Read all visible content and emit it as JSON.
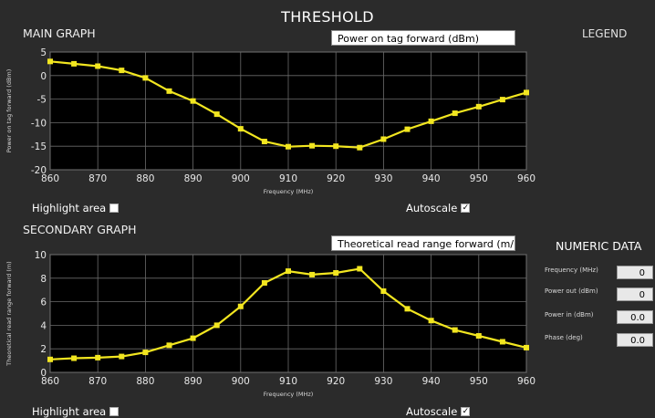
{
  "header": {
    "title": "THRESHOLD"
  },
  "main_graph": {
    "section_title": "MAIN GRAPH",
    "selector_value": "Power on tag forward (dBm)",
    "highlight_label": "Highlight area",
    "highlight_checked": false,
    "autoscale_label": "Autoscale",
    "autoscale_checked": true
  },
  "legend": {
    "title": "LEGEND"
  },
  "secondary_graph": {
    "section_title": "SECONDARY GRAPH",
    "selector_value": "Theoretical read range forward (m/",
    "highlight_label": "Highlight area",
    "highlight_checked": false,
    "autoscale_label": "Autoscale",
    "autoscale_checked": true
  },
  "numeric_data": {
    "title": "NUMERIC DATA",
    "rows": [
      {
        "label": "Frequency (MHz)",
        "value": "0"
      },
      {
        "label": "Power out (dBm)",
        "value": "0"
      },
      {
        "label": "Power in (dBm)",
        "value": "0.0"
      },
      {
        "label": "Phase (deg)",
        "value": "0.0"
      }
    ]
  },
  "colors": {
    "line": "#f2e620",
    "plot_bg": "#000000",
    "grid": "#6b6b6b",
    "panel_bg": "#2b2b2b"
  },
  "chart_data": [
    {
      "type": "line",
      "xlabel": "Frequency (MHz)",
      "ylabel": "Power on tag forward (dBm)",
      "xlim": [
        860,
        960
      ],
      "ylim": [
        -20,
        5
      ],
      "xticks": [
        860,
        870,
        880,
        890,
        900,
        910,
        920,
        930,
        940,
        950,
        960
      ],
      "yticks": [
        -20,
        -15,
        -10,
        -5,
        0,
        5
      ],
      "grid": true,
      "x": [
        860,
        865,
        870,
        875,
        880,
        885,
        890,
        895,
        900,
        905,
        910,
        915,
        920,
        925,
        930,
        935,
        940,
        945,
        950,
        955,
        960
      ],
      "y": [
        3.0,
        2.5,
        2.0,
        1.1,
        -0.5,
        -3.3,
        -5.4,
        -8.2,
        -11.3,
        -14.0,
        -15.1,
        -14.9,
        -15.0,
        -15.3,
        -13.5,
        -11.4,
        -9.7,
        -8.0,
        -6.6,
        -5.1,
        -3.6
      ]
    },
    {
      "type": "line",
      "xlabel": "Frequency (MHz)",
      "ylabel": "Theoretical read range forward (m)",
      "xlim": [
        860,
        960
      ],
      "ylim": [
        0,
        10
      ],
      "xticks": [
        860,
        870,
        880,
        890,
        900,
        910,
        920,
        930,
        940,
        950,
        960
      ],
      "yticks": [
        0,
        2,
        4,
        6,
        8,
        10
      ],
      "grid": true,
      "x": [
        860,
        865,
        870,
        875,
        880,
        885,
        890,
        895,
        900,
        905,
        910,
        915,
        920,
        925,
        930,
        935,
        940,
        945,
        950,
        955,
        960
      ],
      "y": [
        1.1,
        1.2,
        1.25,
        1.35,
        1.7,
        2.3,
        2.9,
        4.0,
        5.6,
        7.6,
        8.6,
        8.3,
        8.45,
        8.8,
        6.9,
        5.4,
        4.4,
        3.6,
        3.1,
        2.6,
        2.1
      ]
    }
  ]
}
